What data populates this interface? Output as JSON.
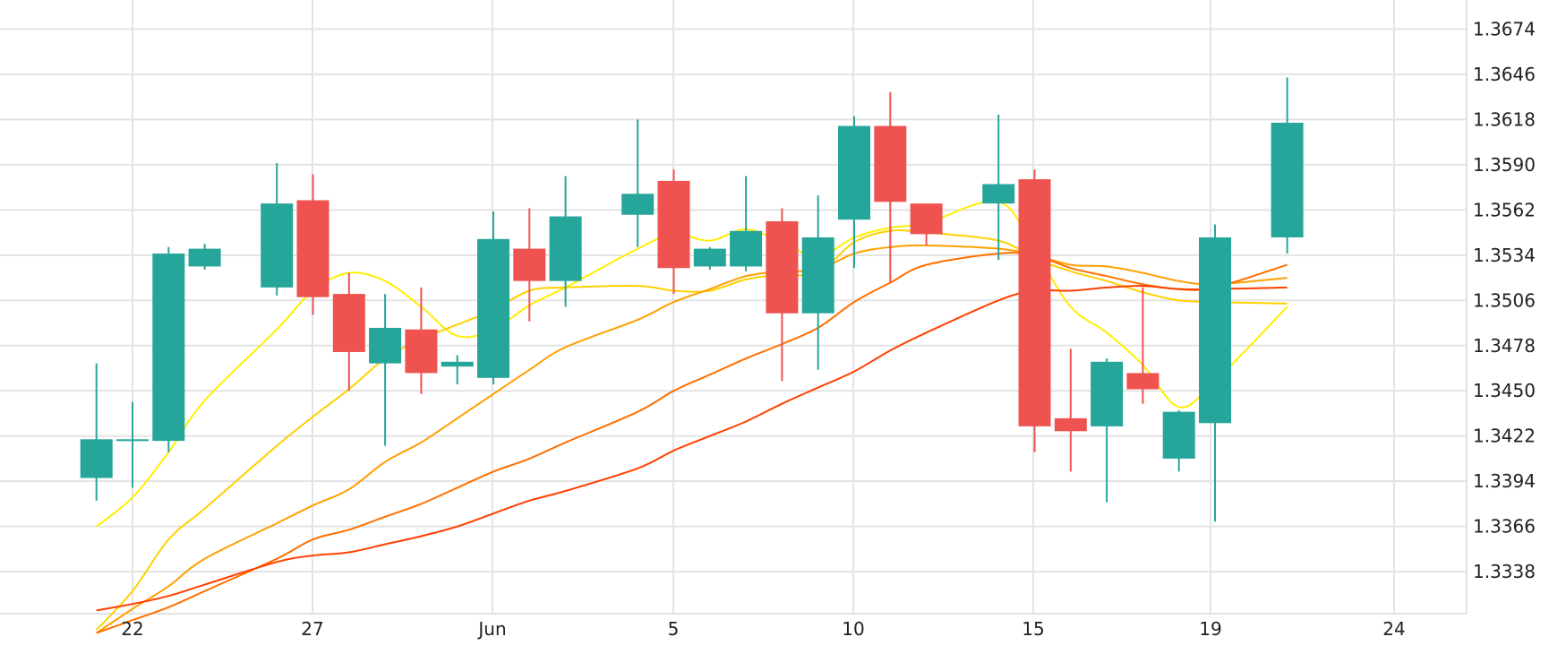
{
  "chart_data": {
    "type": "candlestick",
    "title": "",
    "x_ticks": [
      "22",
      "27",
      "Jun",
      "5",
      "10",
      "15",
      "19",
      "24"
    ],
    "y_ticks": [
      "1.3674",
      "1.3646",
      "1.3618",
      "1.3590",
      "1.3562",
      "1.3534",
      "1.3506",
      "1.3478",
      "1.3450",
      "1.3422",
      "1.3394",
      "1.3366",
      "1.3338"
    ],
    "ylim": [
      1.3312,
      1.3692
    ],
    "grid": true,
    "colors": {
      "up": "#26a69a",
      "down": "#ef5350",
      "grid": "#e3e3e3",
      "text": "#222222"
    },
    "candles": [
      {
        "x": 21,
        "o": 1.3396,
        "h": 1.3467,
        "l": 1.3382,
        "c": 1.342
      },
      {
        "x": 22,
        "o": 1.342,
        "h": 1.3443,
        "l": 1.339,
        "c": 1.342
      },
      {
        "x": 23,
        "o": 1.3419,
        "h": 1.3539,
        "l": 1.3412,
        "c": 1.3535
      },
      {
        "x": 24,
        "o": 1.3527,
        "h": 1.3541,
        "l": 1.3525,
        "c": 1.3538
      },
      {
        "x": 26,
        "o": 1.3514,
        "h": 1.3591,
        "l": 1.3509,
        "c": 1.3566
      },
      {
        "x": 27,
        "o": 1.3568,
        "h": 1.3584,
        "l": 1.3497,
        "c": 1.3508
      },
      {
        "x": 28,
        "o": 1.351,
        "h": 1.3523,
        "l": 1.345,
        "c": 1.3474
      },
      {
        "x": 29,
        "o": 1.3467,
        "h": 1.351,
        "l": 1.3416,
        "c": 1.3489
      },
      {
        "x": 30,
        "o": 1.3488,
        "h": 1.3514,
        "l": 1.3448,
        "c": 1.3461
      },
      {
        "x": 31,
        "o": 1.3465,
        "h": 1.3472,
        "l": 1.3454,
        "c": 1.3468
      },
      {
        "x": 32,
        "o": 1.3458,
        "h": 1.3561,
        "l": 1.3454,
        "c": 1.3544
      },
      {
        "x": 33,
        "o": 1.3538,
        "h": 1.3563,
        "l": 1.3493,
        "c": 1.3518
      },
      {
        "x": 34,
        "o": 1.3518,
        "h": 1.3583,
        "l": 1.3502,
        "c": 1.3558
      },
      {
        "x": 36,
        "o": 1.3559,
        "h": 1.3618,
        "l": 1.3539,
        "c": 1.3572
      },
      {
        "x": 37,
        "o": 1.358,
        "h": 1.3587,
        "l": 1.351,
        "c": 1.3526
      },
      {
        "x": 38,
        "o": 1.3527,
        "h": 1.3539,
        "l": 1.3525,
        "c": 1.3538
      },
      {
        "x": 39,
        "o": 1.3527,
        "h": 1.3583,
        "l": 1.3524,
        "c": 1.3549
      },
      {
        "x": 40,
        "o": 1.3555,
        "h": 1.3563,
        "l": 1.3456,
        "c": 1.3498
      },
      {
        "x": 41,
        "o": 1.3498,
        "h": 1.3571,
        "l": 1.3463,
        "c": 1.3545
      },
      {
        "x": 42,
        "o": 1.3556,
        "h": 1.362,
        "l": 1.3526,
        "c": 1.3614
      },
      {
        "x": 43,
        "o": 1.3614,
        "h": 1.3635,
        "l": 1.3517,
        "c": 1.3567
      },
      {
        "x": 44,
        "o": 1.3566,
        "h": 1.3565,
        "l": 1.354,
        "c": 1.3547
      },
      {
        "x": 46,
        "o": 1.3566,
        "h": 1.3621,
        "l": 1.3531,
        "c": 1.3578
      },
      {
        "x": 47,
        "o": 1.3581,
        "h": 1.3587,
        "l": 1.3412,
        "c": 1.3428
      },
      {
        "x": 48,
        "o": 1.3433,
        "h": 1.3476,
        "l": 1.34,
        "c": 1.3425
      },
      {
        "x": 49,
        "o": 1.3428,
        "h": 1.347,
        "l": 1.3381,
        "c": 1.3468
      },
      {
        "x": 50,
        "o": 1.3461,
        "h": 1.3514,
        "l": 1.3442,
        "c": 1.3451
      },
      {
        "x": 51,
        "o": 1.3408,
        "h": 1.3438,
        "l": 1.34,
        "c": 1.3437
      },
      {
        "x": 52,
        "o": 1.343,
        "h": 1.3553,
        "l": 1.3369,
        "c": 1.3545
      },
      {
        "x": 54,
        "o": 1.3545,
        "h": 1.3644,
        "l": 1.3535,
        "c": 1.3616
      }
    ],
    "moving_averages": [
      {
        "color": "#ffef00",
        "points": [
          [
            21,
            1.3366
          ],
          [
            22,
            1.3384
          ],
          [
            23,
            1.3412
          ],
          [
            24,
            1.3444
          ],
          [
            26,
            1.3488
          ],
          [
            27,
            1.3512
          ],
          [
            28,
            1.3523
          ],
          [
            29,
            1.3518
          ],
          [
            30,
            1.3502
          ],
          [
            31,
            1.3484
          ],
          [
            32,
            1.3488
          ],
          [
            33,
            1.3503
          ],
          [
            34,
            1.3514
          ],
          [
            36,
            1.3538
          ],
          [
            37,
            1.3547
          ],
          [
            38,
            1.3543
          ],
          [
            39,
            1.355
          ],
          [
            40,
            1.3542
          ],
          [
            41,
            1.3533
          ],
          [
            42,
            1.3545
          ],
          [
            43,
            1.3551
          ],
          [
            44,
            1.3554
          ],
          [
            46,
            1.3567
          ],
          [
            47,
            1.3537
          ],
          [
            48,
            1.3502
          ],
          [
            49,
            1.3486
          ],
          [
            50,
            1.3466
          ],
          [
            51,
            1.344
          ],
          [
            52,
            1.3456
          ],
          [
            54,
            1.3502
          ]
        ]
      },
      {
        "color": "#ffd000",
        "points": [
          [
            21,
            1.3302
          ],
          [
            22,
            1.3326
          ],
          [
            23,
            1.3358
          ],
          [
            24,
            1.3377
          ],
          [
            26,
            1.3416
          ],
          [
            27,
            1.3434
          ],
          [
            28,
            1.3451
          ],
          [
            29,
            1.347
          ],
          [
            30,
            1.3482
          ],
          [
            31,
            1.3491
          ],
          [
            32,
            1.35
          ],
          [
            33,
            1.3512
          ],
          [
            34,
            1.3514
          ],
          [
            36,
            1.3515
          ],
          [
            37,
            1.3512
          ],
          [
            38,
            1.3512
          ],
          [
            39,
            1.3519
          ],
          [
            40,
            1.3522
          ],
          [
            41,
            1.3523
          ],
          [
            42,
            1.3542
          ],
          [
            43,
            1.3549
          ],
          [
            44,
            1.3548
          ],
          [
            46,
            1.3543
          ],
          [
            47,
            1.3532
          ],
          [
            48,
            1.3524
          ],
          [
            49,
            1.3518
          ],
          [
            50,
            1.3511
          ],
          [
            51,
            1.3506
          ],
          [
            52,
            1.3505
          ],
          [
            54,
            1.3504
          ]
        ]
      },
      {
        "color": "#ffa000",
        "points": [
          [
            21,
            1.33
          ],
          [
            22,
            1.3315
          ],
          [
            23,
            1.3329
          ],
          [
            24,
            1.3346
          ],
          [
            26,
            1.3368
          ],
          [
            27,
            1.3379
          ],
          [
            28,
            1.3389
          ],
          [
            29,
            1.3406
          ],
          [
            30,
            1.3418
          ],
          [
            31,
            1.3433
          ],
          [
            32,
            1.3448
          ],
          [
            33,
            1.3463
          ],
          [
            34,
            1.3477
          ],
          [
            36,
            1.3494
          ],
          [
            37,
            1.3505
          ],
          [
            38,
            1.3513
          ],
          [
            39,
            1.3521
          ],
          [
            40,
            1.3524
          ],
          [
            41,
            1.3525
          ],
          [
            42,
            1.3535
          ],
          [
            43,
            1.3539
          ],
          [
            44,
            1.354
          ],
          [
            46,
            1.3538
          ],
          [
            47,
            1.3534
          ],
          [
            48,
            1.3528
          ],
          [
            49,
            1.3527
          ],
          [
            50,
            1.3523
          ],
          [
            51,
            1.3518
          ],
          [
            52,
            1.3516
          ],
          [
            54,
            1.352
          ]
        ]
      },
      {
        "color": "#ff7000",
        "points": [
          [
            21,
            1.33
          ],
          [
            22,
            1.3308
          ],
          [
            23,
            1.3316
          ],
          [
            24,
            1.3326
          ],
          [
            26,
            1.3346
          ],
          [
            27,
            1.3358
          ],
          [
            28,
            1.3364
          ],
          [
            29,
            1.3372
          ],
          [
            30,
            1.338
          ],
          [
            31,
            1.339
          ],
          [
            32,
            1.34
          ],
          [
            33,
            1.3408
          ],
          [
            34,
            1.3418
          ],
          [
            36,
            1.3437
          ],
          [
            37,
            1.345
          ],
          [
            38,
            1.346
          ],
          [
            39,
            1.347
          ],
          [
            40,
            1.3479
          ],
          [
            41,
            1.3489
          ],
          [
            42,
            1.3505
          ],
          [
            43,
            1.3517
          ],
          [
            44,
            1.3528
          ],
          [
            46,
            1.3535
          ],
          [
            47,
            1.3534
          ],
          [
            48,
            1.3526
          ],
          [
            49,
            1.3521
          ],
          [
            50,
            1.3516
          ],
          [
            51,
            1.3513
          ],
          [
            52,
            1.3514
          ],
          [
            54,
            1.3528
          ]
        ]
      },
      {
        "color": "#ff4000",
        "points": [
          [
            21,
            1.3314
          ],
          [
            22,
            1.3318
          ],
          [
            23,
            1.3323
          ],
          [
            24,
            1.333
          ],
          [
            26,
            1.3344
          ],
          [
            27,
            1.3348
          ],
          [
            28,
            1.335
          ],
          [
            29,
            1.3355
          ],
          [
            30,
            1.336
          ],
          [
            31,
            1.3366
          ],
          [
            32,
            1.3374
          ],
          [
            33,
            1.3382
          ],
          [
            34,
            1.3388
          ],
          [
            36,
            1.3402
          ],
          [
            37,
            1.3413
          ],
          [
            38,
            1.3422
          ],
          [
            39,
            1.3431
          ],
          [
            40,
            1.3442
          ],
          [
            41,
            1.3452
          ],
          [
            42,
            1.3462
          ],
          [
            43,
            1.3475
          ],
          [
            44,
            1.3486
          ],
          [
            46,
            1.3506
          ],
          [
            47,
            1.3512
          ],
          [
            48,
            1.3512
          ],
          [
            49,
            1.3514
          ],
          [
            50,
            1.3515
          ],
          [
            51,
            1.3513
          ],
          [
            52,
            1.3513
          ],
          [
            54,
            1.3514
          ]
        ]
      }
    ]
  }
}
